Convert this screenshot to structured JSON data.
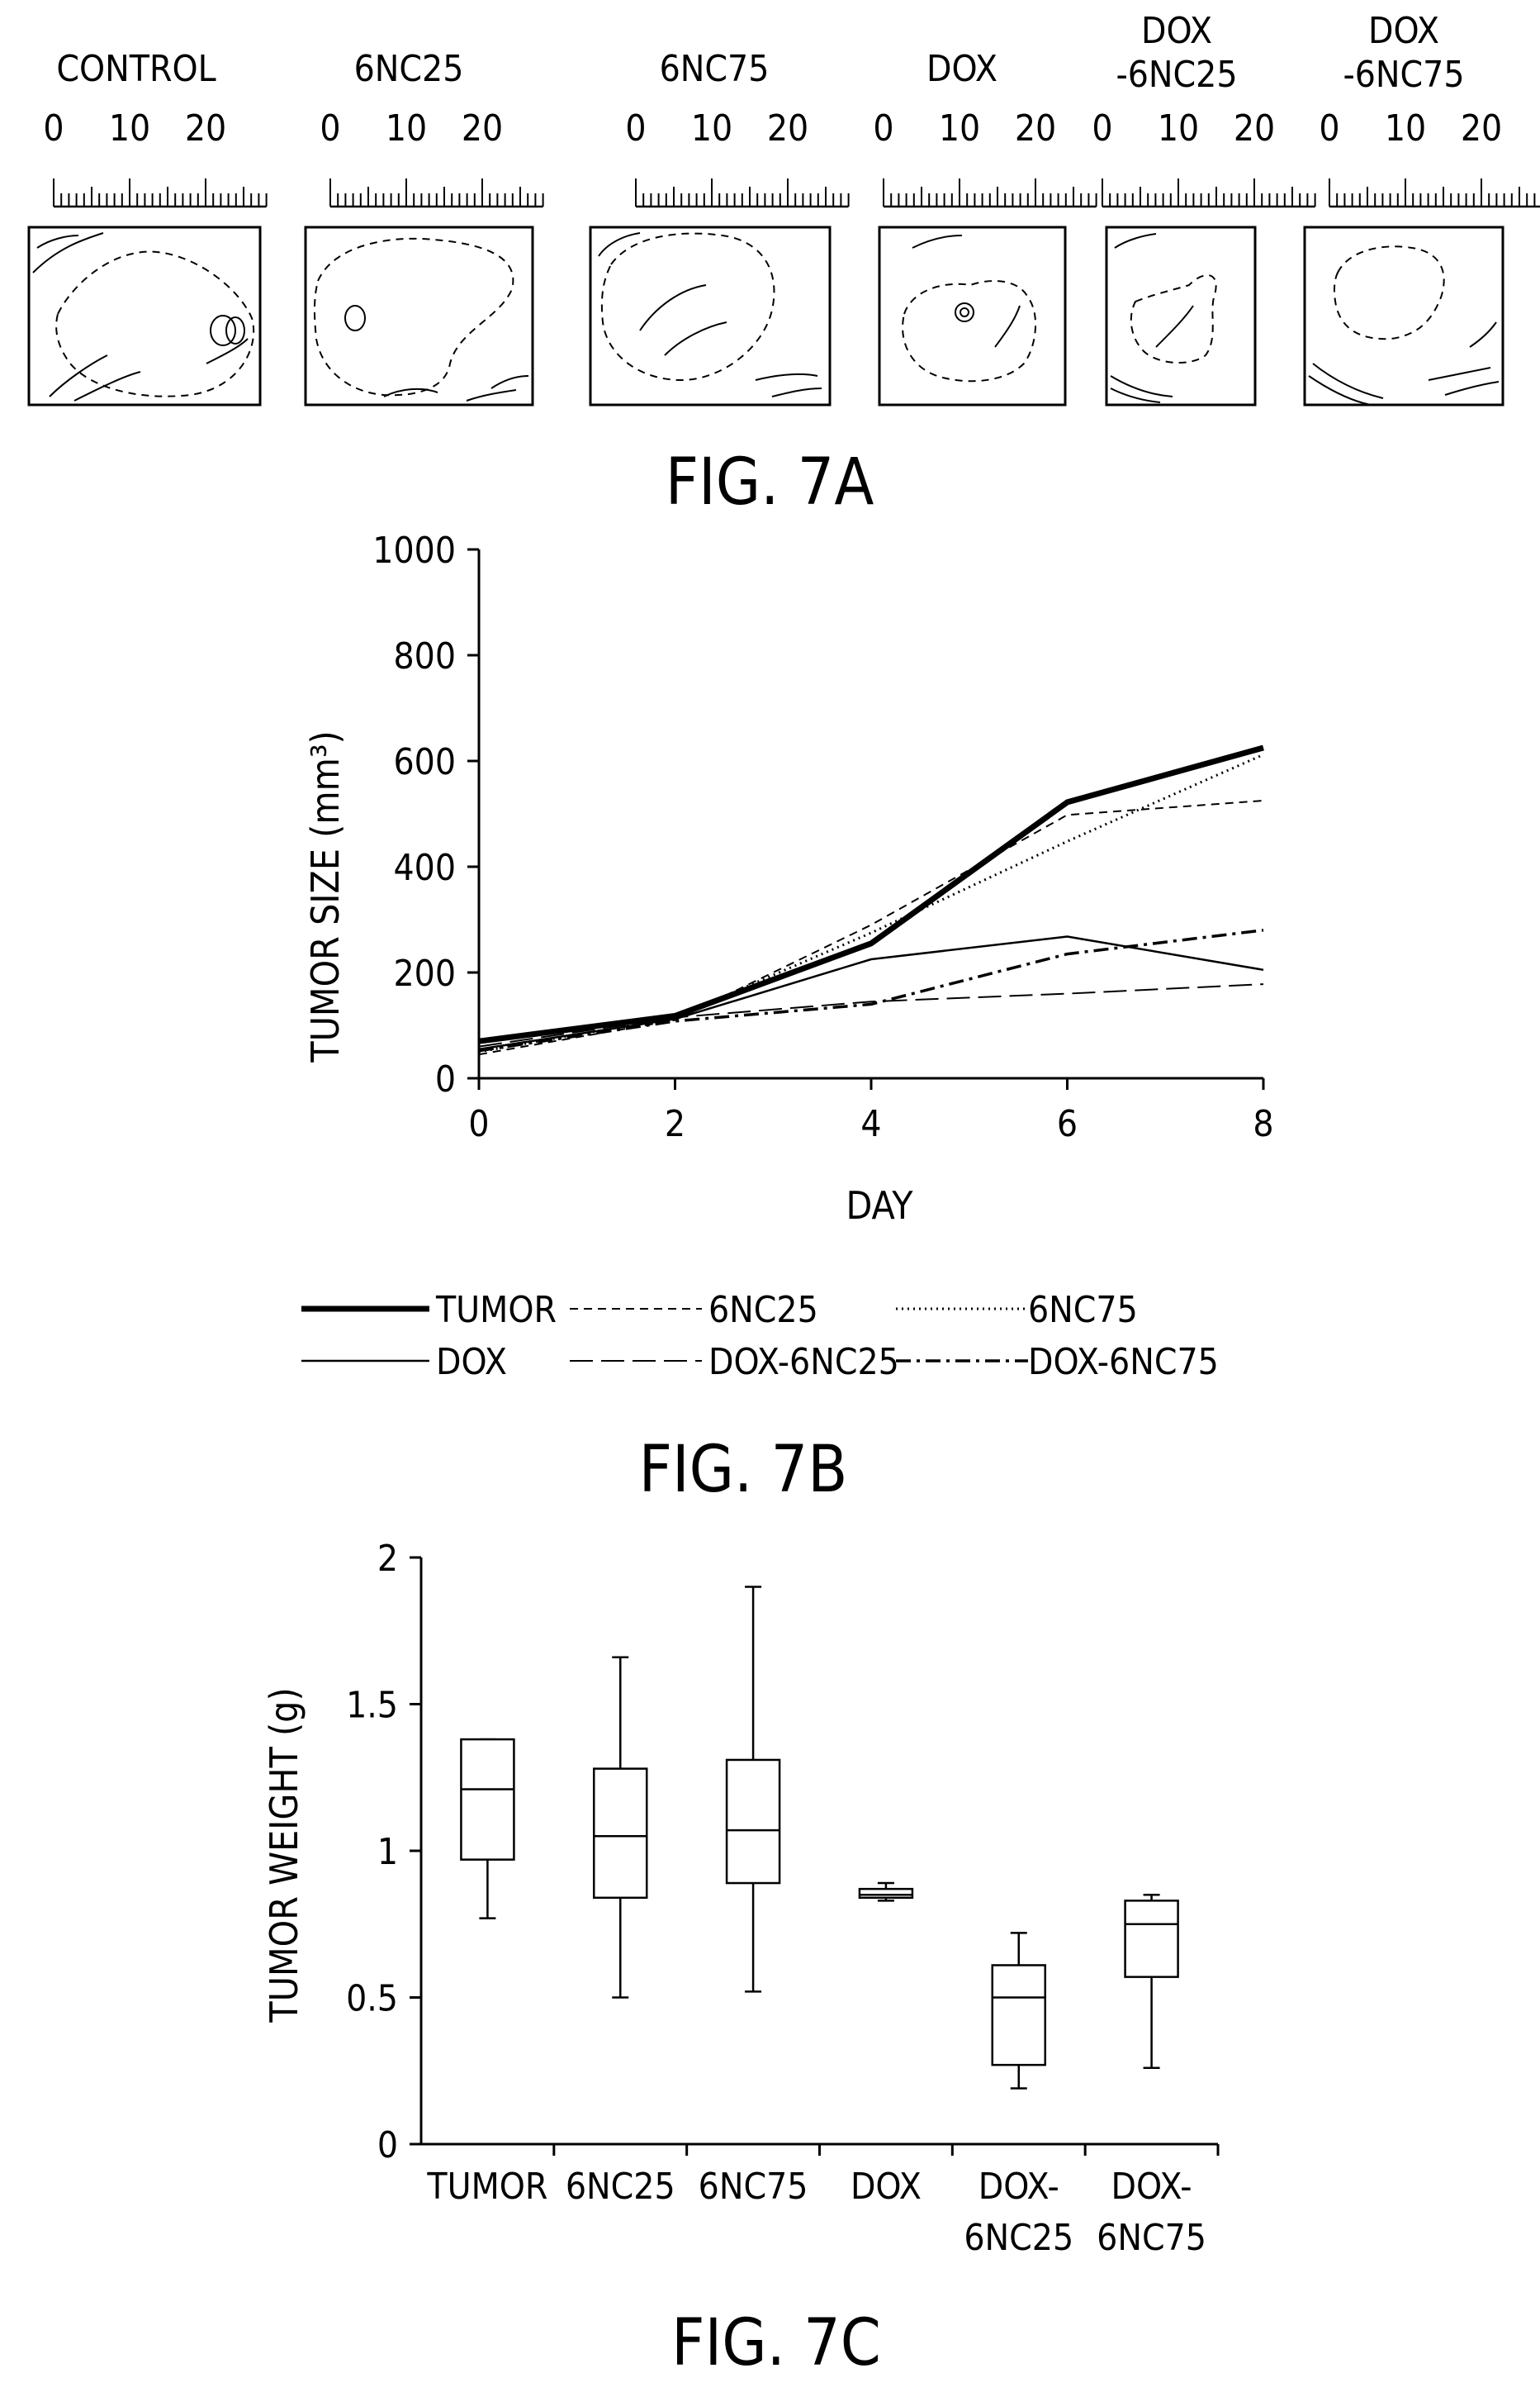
{
  "figure_a": {
    "caption": "FIG. 7A",
    "ruler_ticks": [
      "0",
      "10",
      "20"
    ],
    "panels": [
      {
        "title": [
          "CONTROL"
        ]
      },
      {
        "title": [
          "6NC25"
        ]
      },
      {
        "title": [
          "6NC75"
        ]
      },
      {
        "title": [
          "DOX"
        ]
      },
      {
        "title": [
          "DOX",
          "-6NC25"
        ]
      },
      {
        "title": [
          "DOX",
          "-6NC75"
        ]
      }
    ]
  },
  "chart_data": [
    {
      "type": "line",
      "caption": "FIG. 7B",
      "xlabel": "DAY",
      "ylabel": "TUMOR SIZE (mm³)",
      "x": [
        0,
        2,
        4,
        6,
        8
      ],
      "xticks": [
        "0",
        "2",
        "4",
        "6",
        "8"
      ],
      "yticks": [
        "0",
        "200",
        "400",
        "600",
        "800",
        "1000"
      ],
      "ylim": [
        0,
        1000
      ],
      "xlim": [
        0,
        8
      ],
      "legend_position": "bottom",
      "series": [
        {
          "name": "TUMOR",
          "values": [
            70,
            118,
            255,
            522,
            625
          ],
          "style": "thick-solid"
        },
        {
          "name": "6NC25",
          "values": [
            45,
            110,
            290,
            498,
            525
          ],
          "style": "dashed"
        },
        {
          "name": "6NC75",
          "values": [
            50,
            115,
            275,
            448,
            612
          ],
          "style": "dotted"
        },
        {
          "name": "DOX",
          "values": [
            55,
            112,
            225,
            268,
            205
          ],
          "style": "thin-solid"
        },
        {
          "name": "DOX-6NC25",
          "values": [
            60,
            115,
            145,
            160,
            178
          ],
          "style": "long-dash"
        },
        {
          "name": "DOX-6NC75",
          "values": [
            52,
            108,
            140,
            235,
            280
          ],
          "style": "dash-dot"
        }
      ]
    },
    {
      "type": "box",
      "caption": "FIG. 7C",
      "ylabel": "TUMOR WEIGHT (g)",
      "yticks": [
        "0",
        "0.5",
        "1",
        "1.5",
        "2"
      ],
      "ylim": [
        0,
        2
      ],
      "categories": [
        [
          "TUMOR"
        ],
        [
          "6NC25"
        ],
        [
          "6NC75"
        ],
        [
          "DOX"
        ],
        [
          "DOX-",
          "6NC25"
        ],
        [
          "DOX-",
          "6NC75"
        ]
      ],
      "boxes": [
        {
          "min": 0.77,
          "q1": 0.97,
          "median": 1.21,
          "q3": 1.38,
          "max": 1.38
        },
        {
          "min": 0.5,
          "q1": 0.84,
          "median": 1.05,
          "q3": 1.28,
          "max": 1.66
        },
        {
          "min": 0.52,
          "q1": 0.89,
          "median": 1.07,
          "q3": 1.31,
          "max": 1.9
        },
        {
          "min": 0.83,
          "q1": 0.84,
          "median": 0.85,
          "q3": 0.87,
          "max": 0.89
        },
        {
          "min": 0.19,
          "q1": 0.27,
          "median": 0.5,
          "q3": 0.61,
          "max": 0.72
        },
        {
          "min": 0.26,
          "q1": 0.57,
          "median": 0.75,
          "q3": 0.83,
          "max": 0.85
        }
      ]
    }
  ]
}
